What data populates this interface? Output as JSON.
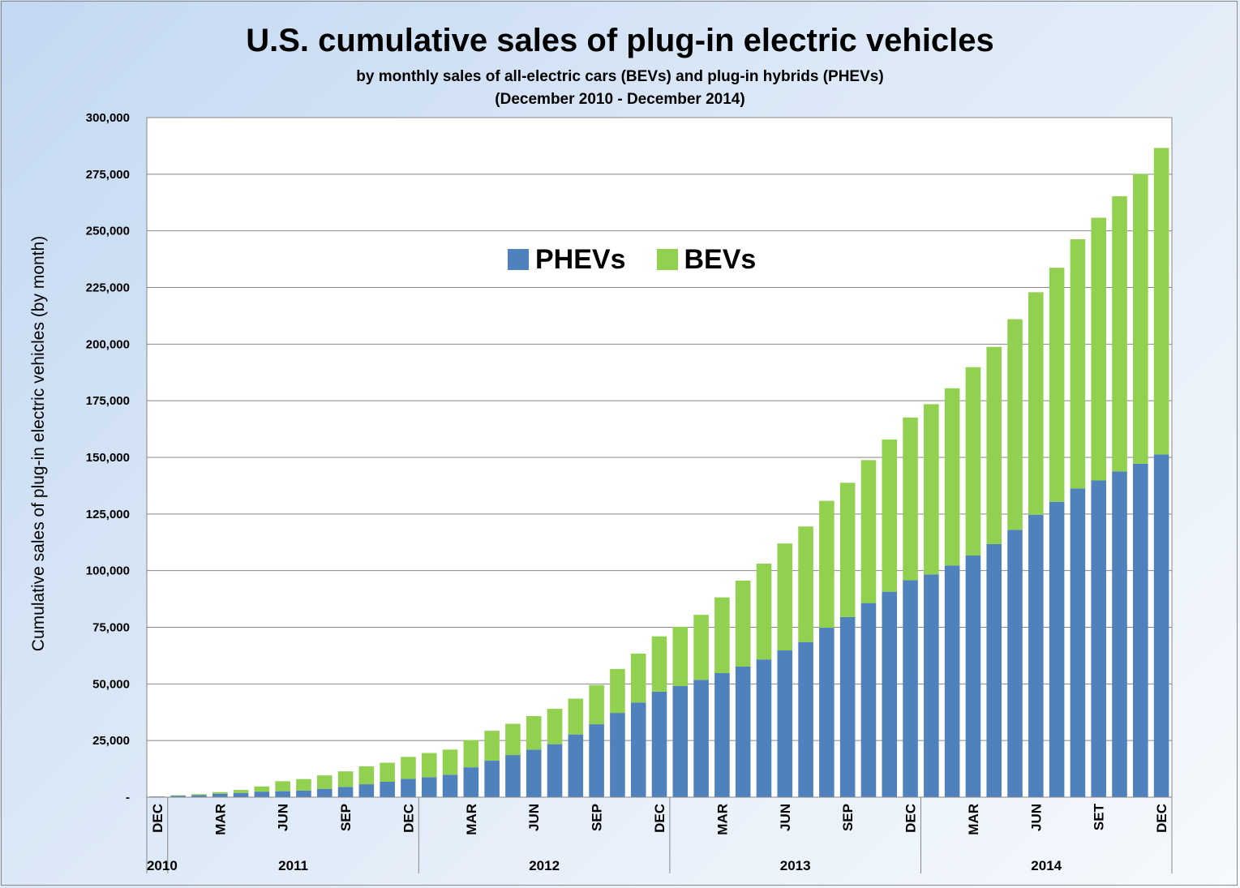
{
  "chart_data": {
    "type": "bar",
    "stacked": true,
    "title": "U.S. cumulative sales of plug-in electric vehicles",
    "subtitle_lines": [
      "by monthly sales of all-electric cars (BEVs) and plug-in hybrids (PHEVs)",
      "(December 2010 - December 2014)"
    ],
    "ylabel": "Cumulative sales of plug-in electric vehicles (by month)",
    "ylim": [
      0,
      300000
    ],
    "yticks": [
      0,
      25000,
      50000,
      75000,
      100000,
      125000,
      150000,
      175000,
      200000,
      225000,
      250000,
      275000,
      300000
    ],
    "ytick_labels": [
      "-",
      "25,000",
      "50,000",
      "75,000",
      "100,000",
      "125,000",
      "150,000",
      "175,000",
      "200,000",
      "225,000",
      "250,000",
      "275,000",
      "300,000"
    ],
    "grid": true,
    "legend_position": "top-center",
    "month_tick_labels": [
      {
        "index": 0,
        "label": "DEC"
      },
      {
        "index": 3,
        "label": "MAR"
      },
      {
        "index": 6,
        "label": "JUN"
      },
      {
        "index": 9,
        "label": "SEP"
      },
      {
        "index": 12,
        "label": "DEC"
      },
      {
        "index": 15,
        "label": "MAR"
      },
      {
        "index": 18,
        "label": "JUN"
      },
      {
        "index": 21,
        "label": "SEP"
      },
      {
        "index": 24,
        "label": "DEC"
      },
      {
        "index": 27,
        "label": "MAR"
      },
      {
        "index": 30,
        "label": "JUN"
      },
      {
        "index": 33,
        "label": "SEP"
      },
      {
        "index": 36,
        "label": "DEC"
      },
      {
        "index": 39,
        "label": "MAR"
      },
      {
        "index": 42,
        "label": "JUN"
      },
      {
        "index": 45,
        "label": "SET"
      },
      {
        "index": 48,
        "label": "DEC"
      }
    ],
    "year_groups": [
      {
        "label": "2010",
        "start": 0,
        "end": 0
      },
      {
        "label": "2011",
        "start": 1,
        "end": 12
      },
      {
        "label": "2012",
        "start": 13,
        "end": 24
      },
      {
        "label": "2013",
        "start": 25,
        "end": 36
      },
      {
        "label": "2014",
        "start": 37,
        "end": 48
      }
    ],
    "series": [
      {
        "name": "PHEVs",
        "color": "#4f81bd",
        "values": [
          326,
          650,
          930,
          1540,
          1890,
          2450,
          2640,
          2900,
          3700,
          4500,
          5700,
          6800,
          8100,
          8800,
          9900,
          13200,
          16100,
          18600,
          21000,
          23400,
          27700,
          32200,
          37200,
          41800,
          46600,
          49100,
          51800,
          54800,
          57700,
          60800,
          64800,
          68500,
          74800,
          79500,
          85700,
          90700,
          95800,
          98300,
          102300,
          106700,
          111700,
          118000,
          124700,
          130400,
          136300,
          139800,
          143800,
          147200,
          151300
        ]
      },
      {
        "name": "BEVs",
        "color": "#92d050",
        "values": [
          19,
          200,
          400,
          700,
          1300,
          2300,
          4400,
          5100,
          5900,
          6900,
          7900,
          8400,
          9700,
          10700,
          11100,
          12000,
          13200,
          13800,
          14800,
          15600,
          15800,
          17300,
          19400,
          21600,
          24400,
          26100,
          28700,
          33400,
          37900,
          42300,
          47200,
          51000,
          56000,
          59300,
          63100,
          67200,
          71800,
          75200,
          78200,
          83100,
          87100,
          93000,
          98200,
          103300,
          110000,
          116000,
          121500,
          127900,
          135300
        ]
      }
    ]
  }
}
